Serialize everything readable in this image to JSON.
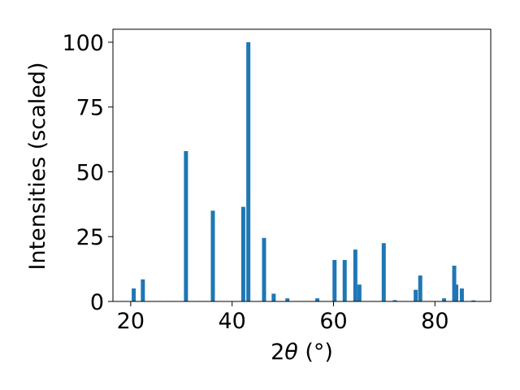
{
  "chart_data": {
    "type": "bar",
    "xlabel_prefix": "2",
    "xlabel_symbol": "θ",
    "xlabel_suffix": " (°)",
    "ylabel": "Intensities (scaled)",
    "xlim": [
      16.5,
      91.0
    ],
    "ylim": [
      0,
      105
    ],
    "x_ticks": [
      20,
      40,
      60,
      80
    ],
    "y_ticks": [
      0,
      25,
      50,
      75,
      100
    ],
    "grid": false,
    "bar_color": "#1f77b4",
    "bar_width_deg": 0.8,
    "series": [
      {
        "x": [
          20.6,
          22.4,
          30.9,
          36.2,
          42.2,
          43.2,
          46.3,
          48.2,
          50.9,
          56.8,
          60.2,
          62.2,
          64.3,
          65.1,
          69.9,
          72.1,
          76.2,
          77.1,
          81.8,
          83.8,
          84.2,
          85.3,
          87.6
        ],
        "values": [
          5,
          8.5,
          58,
          35,
          36.5,
          100,
          24.5,
          3,
          1.2,
          1.2,
          16,
          16,
          20,
          6.5,
          22.5,
          0.5,
          4.5,
          10,
          1.2,
          13.8,
          6.5,
          5,
          0.4
        ]
      }
    ]
  }
}
